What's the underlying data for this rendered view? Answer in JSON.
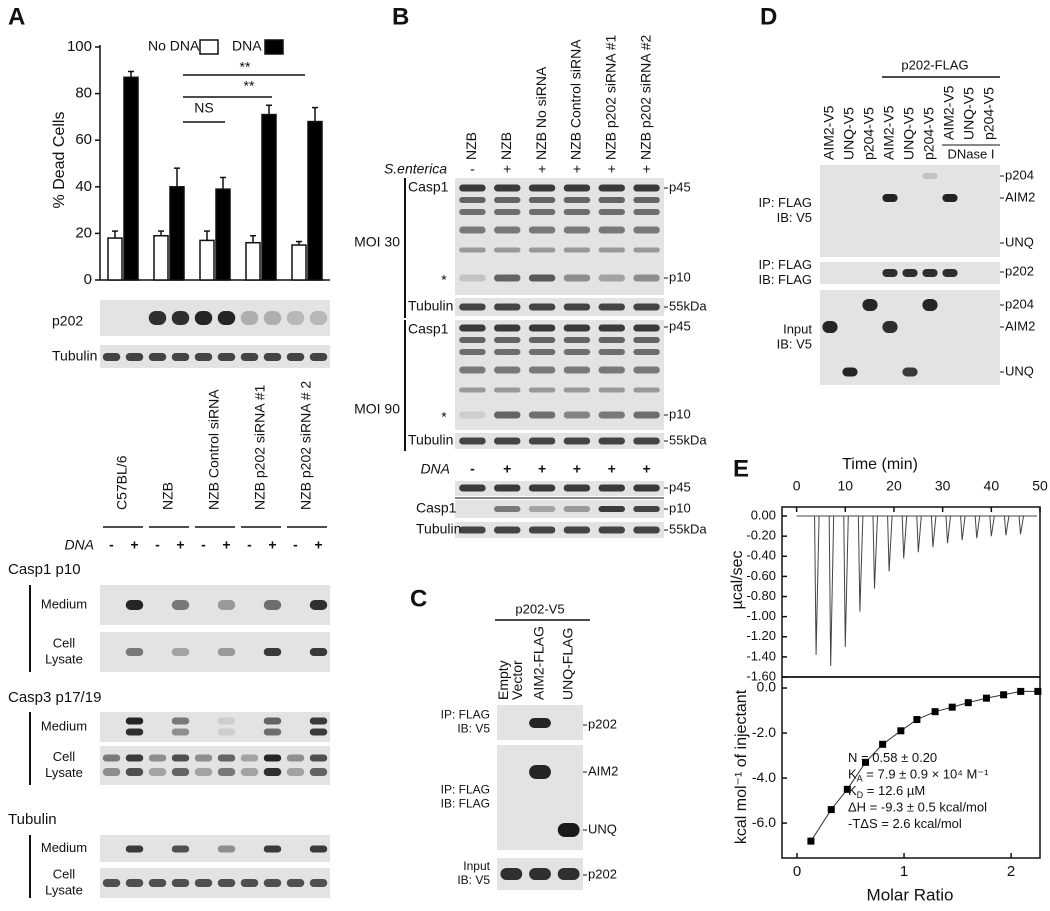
{
  "figure": {
    "panel_labels": [
      "A",
      "B",
      "C",
      "D",
      "E"
    ]
  },
  "chart_data": [
    {
      "type": "bar",
      "y_label": "% Dead Cells",
      "categories": [
        "C57BL/6",
        "NZB",
        "NZB Control siRNA",
        "NZB p202 siRNA #1",
        "NZB p202 siRNA # 2"
      ],
      "series": [
        {
          "name": "No DNA",
          "color": "#ffffff",
          "values": [
            18,
            19,
            17,
            16,
            15
          ],
          "errors": [
            3,
            2,
            4,
            3,
            1.5
          ]
        },
        {
          "name": "DNA",
          "color": "#000000",
          "values": [
            87,
            40,
            39,
            71,
            68
          ],
          "errors": [
            2.5,
            8,
            5,
            4,
            6
          ]
        }
      ],
      "ylim": [
        0,
        100
      ],
      "yticks": [
        0,
        20,
        40,
        60,
        80,
        100
      ],
      "annotations": [
        "NS",
        "**",
        "**"
      ]
    },
    {
      "type": "spikes",
      "x_label": "Time (min)",
      "y_label": "µcal/sec",
      "color": "#444444",
      "x": [
        4,
        7,
        10,
        13,
        16,
        19,
        22,
        25,
        28,
        31,
        34,
        37,
        40,
        43,
        46
      ],
      "values": [
        -1.38,
        -1.49,
        -1.3,
        -0.95,
        -0.72,
        -0.55,
        -0.42,
        -0.36,
        -0.31,
        -0.27,
        -0.24,
        -0.22,
        -0.2,
        -0.19,
        -0.18
      ],
      "xlim": [
        -3,
        50
      ],
      "xticks": [
        0,
        10,
        20,
        30,
        40,
        50
      ],
      "ylim": [
        -1.6,
        0.09
      ],
      "yticks": [
        {
          "value": 0,
          "label": "0.00"
        },
        {
          "value": -0.2,
          "label": "-0.20"
        },
        {
          "value": -0.4,
          "label": "-0.40"
        },
        {
          "value": -0.6,
          "label": "-0.60"
        },
        {
          "value": -0.8,
          "label": "-0.80"
        },
        {
          "value": -1.0,
          "label": "-1.00"
        },
        {
          "value": -1.2,
          "label": "-1.20"
        },
        {
          "value": -1.4,
          "label": "-1.40"
        },
        {
          "value": -1.6,
          "label": "-1.60"
        }
      ]
    },
    {
      "type": "scatter",
      "x_label": "Molar Ratio",
      "y_label": "kcal mol⁻¹ of injectant",
      "color": "#000000",
      "x": [
        0.13,
        0.32,
        0.47,
        0.64,
        0.8,
        0.97,
        1.12,
        1.29,
        1.45,
        1.6,
        1.77,
        1.93,
        2.09,
        2.25
      ],
      "values": [
        -6.8,
        -5.4,
        -4.5,
        -3.3,
        -2.5,
        -1.9,
        -1.4,
        -1.05,
        -0.85,
        -0.65,
        -0.45,
        -0.3,
        -0.15,
        -0.15
      ],
      "xlim": [
        -0.14,
        2.27
      ],
      "xticks": [
        0,
        1,
        2
      ],
      "ylim": [
        -7.55,
        0.49
      ],
      "yticks": [
        {
          "value": 0,
          "label": "0.0"
        },
        {
          "value": -2,
          "label": "-2.0"
        },
        {
          "value": -4,
          "label": "-4.0"
        },
        {
          "value": -6,
          "label": "-6.0"
        }
      ],
      "annotations": [
        {
          "text": "N = 0.58 ± 0.20"
        },
        {
          "text": "K",
          "sub": "A",
          "rest": " = 7.9 ± 0.9 × 10⁴ M⁻¹"
        },
        {
          "text": "K",
          "sub": "D",
          "rest": " = 12.6 µM"
        },
        {
          "text": "ΔH = -9.3 ± 0.5 kcal/mol"
        },
        {
          "text": "-TΔS = 2.6 kcal/mol"
        }
      ]
    }
  ],
  "panel_a": {
    "blots": [
      "p202",
      "Tubulin"
    ],
    "treatment": "DNA",
    "signs": [
      "-",
      "+",
      "-",
      "+",
      "-",
      "+",
      "-",
      "+",
      "-",
      "+"
    ],
    "sections": [
      {
        "title": "Casp1 p10",
        "rows": [
          [
            "Medium"
          ],
          [
            "Cell",
            "Lysate"
          ]
        ]
      },
      {
        "title": "Casp3 p17/19",
        "rows": [
          [
            "Medium"
          ],
          [
            "Cell",
            "Lysate"
          ]
        ]
      },
      {
        "title": "Tubulin",
        "rows": [
          [
            "Medium"
          ],
          [
            "Cell",
            "Lysate"
          ]
        ]
      }
    ]
  },
  "panel_b": {
    "lanes": [
      "NZB",
      "NZB",
      "NZB No siRNA",
      "NZB Control siRNA",
      "NZB p202 siRNA #1",
      "NZB p202 siRNA #2"
    ],
    "treatment_1": "S.enterica",
    "signs_1": [
      "-",
      "+",
      "+",
      "+",
      "+",
      "+"
    ],
    "groups": [
      {
        "label": "MOI 30",
        "blots": [
          "Casp1",
          "Tubulin"
        ],
        "star": "*",
        "markers": [
          "p45",
          "p10",
          "55kDa"
        ]
      },
      {
        "label": "MOI 90",
        "blots": [
          "Casp1",
          "Tubulin"
        ],
        "star": "*",
        "markers": [
          "p45",
          "p10",
          "55kDa"
        ]
      }
    ],
    "treatment_2": "DNA",
    "signs_2": [
      "-",
      "+",
      "+",
      "+",
      "+",
      "+"
    ],
    "dna_blots": [
      "Casp1",
      "Tubulin"
    ],
    "dna_markers": [
      "p45",
      "p10",
      "55kDa"
    ]
  },
  "panel_c": {
    "construct": "p202-V5",
    "lanes": [
      [
        "Empty",
        "Vector"
      ],
      [
        "AIM2-FLAG"
      ],
      [
        "UNQ-FLAG"
      ]
    ],
    "blots": [
      {
        "label": [
          "IP: FLAG",
          "IB: V5"
        ],
        "markers": [
          "p202"
        ]
      },
      {
        "label": [
          "IP: FLAG",
          "IB: FLAG"
        ],
        "markers": [
          "AIM2",
          "UNQ"
        ]
      },
      {
        "label": [
          "Input",
          "IB: V5"
        ],
        "markers": [
          "p202"
        ]
      }
    ]
  },
  "panel_d": {
    "construct": "p202-FLAG",
    "lanes": [
      "AIM2-V5",
      "UNQ-V5",
      "p204-V5",
      "AIM2-V5",
      "UNQ-V5",
      "p204-V5",
      "AIM2-V5",
      "UNQ-V5",
      "p204-V5"
    ],
    "treatment": "DNase I",
    "blots": [
      {
        "label": [
          "IP: FLAG",
          "IB: V5"
        ],
        "markers": [
          "p204",
          "AIM2",
          "UNQ"
        ]
      },
      {
        "label": [
          "IP: FLAG",
          "IB: FLAG"
        ],
        "markers": [
          "p202"
        ]
      },
      {
        "label": [
          "Input",
          "IB: V5"
        ],
        "markers": [
          "p204",
          "AIM2",
          "UNQ"
        ]
      }
    ]
  }
}
